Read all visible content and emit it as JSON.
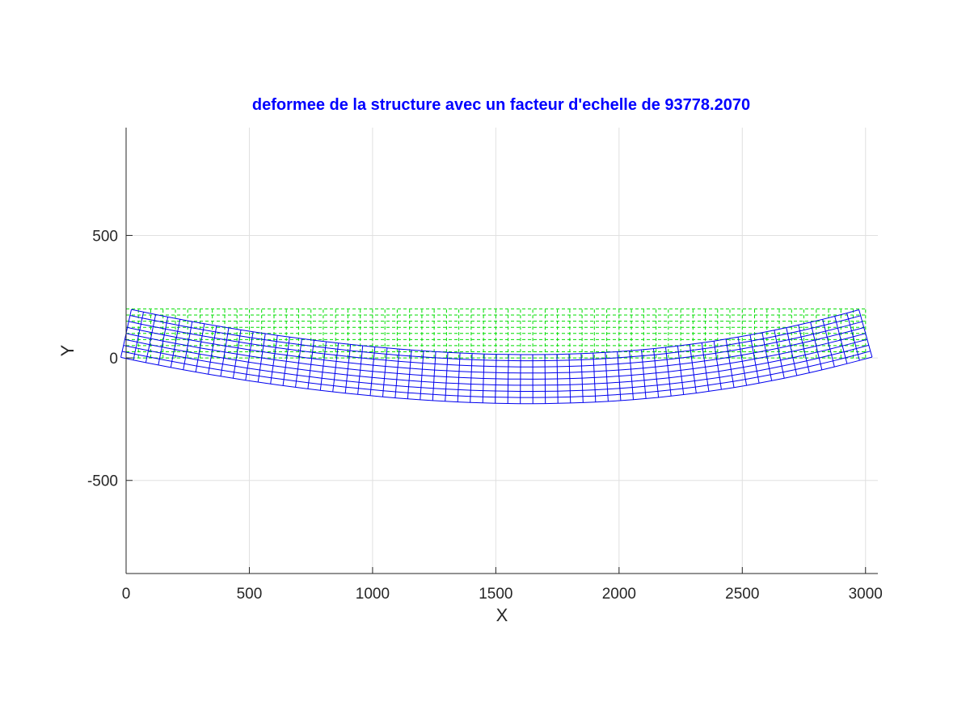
{
  "chart_data": {
    "type": "line",
    "title": "deformee de la structure avec un facteur d'echelle de 93778.2070",
    "xlabel": "X",
    "ylabel": "Y",
    "xlim": [
      0,
      3050
    ],
    "ylim": [
      -880,
      940
    ],
    "xticks": [
      0,
      500,
      1000,
      1500,
      2000,
      2500,
      3000
    ],
    "xtick_labels": [
      "0",
      "500",
      "1000",
      "1500",
      "2000",
      "2500",
      "3000"
    ],
    "yticks": [
      -500,
      0,
      500
    ],
    "ytick_labels": [
      "-500",
      "0",
      "500"
    ],
    "grid": true,
    "colors": {
      "undeformed": "#00dd00",
      "deformed": "#0000ee",
      "title": "#0000ff",
      "grid": "#e0e0e0",
      "axis": "#262626"
    },
    "mesh": {
      "length": 3000,
      "height": 200,
      "elements_x": 60,
      "elements_y": 8,
      "max_deflection": 185,
      "max_deflection_x": 1700,
      "end_rotation_left": 0.09,
      "end_rotation_right": 0.088
    },
    "series": [
      {
        "style": "dashed",
        "color": "#00dd00"
      },
      {
        "style": "solid",
        "color": "#0000ee"
      }
    ]
  }
}
